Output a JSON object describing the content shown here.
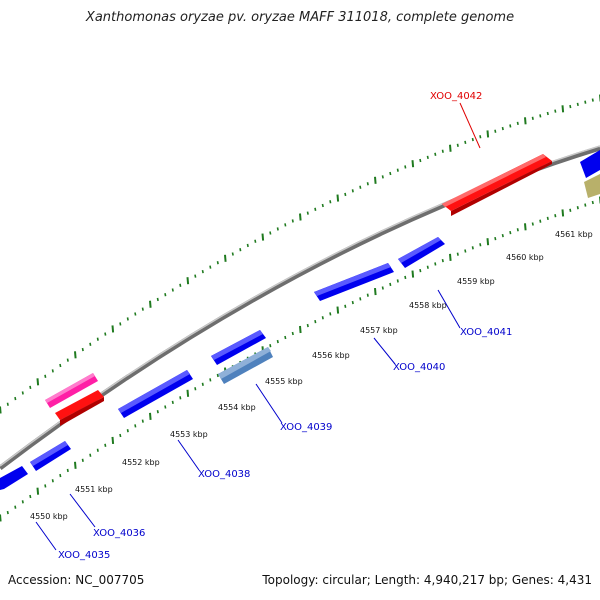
{
  "title": "Xanthomonas oryzae pv. oryzae MAFF 311018, complete genome",
  "footer": {
    "accession": "Accession: NC_007705",
    "summary": "Topology: circular; Length: 4,940,217 bp; Genes: 4,431"
  },
  "colors": {
    "backbone": "#8c8c8c",
    "tick": "#1f7a1f",
    "gene_blue": "#0000ff",
    "gene_red": "#ff0000",
    "gene_pink": "#ff1fa6",
    "gene_steel": "#4f81bd",
    "gene_khaki": "#b8b06a",
    "label_blue": "#0000cc",
    "label_red": "#e00000"
  },
  "scale_labels": [
    "4550 kbp",
    "4551 kbp",
    "4552 kbp",
    "4553 kbp",
    "4554 kbp",
    "4555 kbp",
    "4556 kbp",
    "4557 kbp",
    "4558 kbp",
    "4559 kbp",
    "4560 kbp",
    "4561 kbp"
  ],
  "gene_labels": [
    {
      "name": "XOO_4035",
      "color": "blue"
    },
    {
      "name": "XOO_4036",
      "color": "blue"
    },
    {
      "name": "XOO_4038",
      "color": "blue"
    },
    {
      "name": "XOO_4039",
      "color": "blue"
    },
    {
      "name": "XOO_4040",
      "color": "blue"
    },
    {
      "name": "XOO_4041",
      "color": "blue"
    },
    {
      "name": "XOO_4042",
      "color": "red"
    }
  ]
}
